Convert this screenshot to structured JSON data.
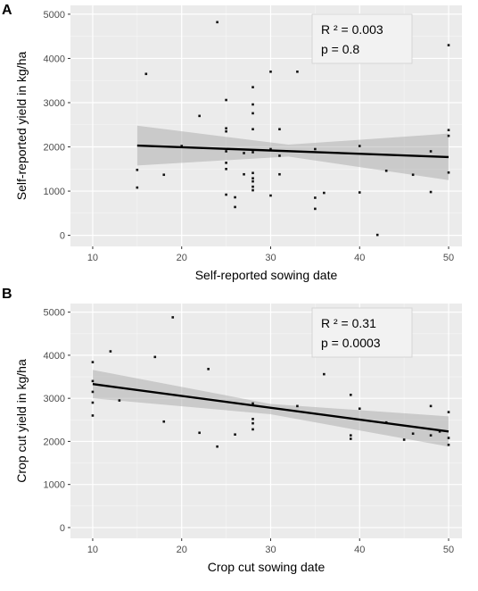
{
  "chart_data": [
    {
      "panel_label": "A",
      "type": "scatter",
      "xlabel": "Self-reported sowing date",
      "ylabel": "Self-reported yield in kg/ha",
      "xlim": [
        7.5,
        51.5
      ],
      "ylim": [
        -250,
        5200
      ],
      "x_ticks": [
        10,
        20,
        30,
        40,
        50
      ],
      "y_ticks": [
        0,
        1000,
        2000,
        3000,
        4000,
        5000
      ],
      "grid": true,
      "annotation": {
        "r2": "R ² = 0.003",
        "p": "p = 0.8"
      },
      "trend": {
        "x": [
          15,
          50
        ],
        "y": [
          2030,
          1770
        ]
      },
      "ci_band": {
        "x": [
          15,
          32,
          50
        ],
        "lower": [
          1580,
          1780,
          1250
        ],
        "upper": [
          2480,
          2050,
          2300
        ]
      },
      "points": [
        [
          15,
          1080
        ],
        [
          15,
          1480
        ],
        [
          16,
          3650
        ],
        [
          18,
          1370
        ],
        [
          20,
          2020
        ],
        [
          22,
          2700
        ],
        [
          24,
          4820
        ],
        [
          25,
          920
        ],
        [
          25,
          1500
        ],
        [
          25,
          1640
        ],
        [
          25,
          1900
        ],
        [
          25,
          2350
        ],
        [
          25,
          2420
        ],
        [
          25,
          3060
        ],
        [
          26,
          640
        ],
        [
          26,
          860
        ],
        [
          27,
          1380
        ],
        [
          27,
          1860
        ],
        [
          28,
          1020
        ],
        [
          28,
          1100
        ],
        [
          28,
          1220
        ],
        [
          28,
          1290
        ],
        [
          28,
          1410
        ],
        [
          28,
          1880
        ],
        [
          28,
          2400
        ],
        [
          28,
          2760
        ],
        [
          28,
          2960
        ],
        [
          28,
          3350
        ],
        [
          30,
          900
        ],
        [
          30,
          1950
        ],
        [
          30,
          3700
        ],
        [
          31,
          1380
        ],
        [
          31,
          1800
        ],
        [
          31,
          2400
        ],
        [
          33,
          3700
        ],
        [
          35,
          600
        ],
        [
          35,
          850
        ],
        [
          35,
          1950
        ],
        [
          36,
          960
        ],
        [
          40,
          970
        ],
        [
          40,
          2020
        ],
        [
          42,
          10
        ],
        [
          43,
          1460
        ],
        [
          46,
          1370
        ],
        [
          48,
          980
        ],
        [
          48,
          1900
        ],
        [
          50,
          1420
        ],
        [
          50,
          2250
        ],
        [
          50,
          2380
        ],
        [
          50,
          4300
        ]
      ]
    },
    {
      "panel_label": "B",
      "type": "scatter",
      "xlabel": "Crop cut sowing date",
      "ylabel": "Crop cut yield in kg/ha",
      "xlim": [
        7.5,
        51.5
      ],
      "ylim": [
        -250,
        5200
      ],
      "x_ticks": [
        10,
        20,
        30,
        40,
        50
      ],
      "y_ticks": [
        0,
        1000,
        2000,
        3000,
        4000,
        5000
      ],
      "grid": true,
      "annotation": {
        "r2": "R ² = 0.31",
        "p": "p = 0.0003"
      },
      "trend": {
        "x": [
          10,
          50
        ],
        "y": [
          3330,
          2230
        ]
      },
      "ci_band": {
        "x": [
          10,
          30,
          50
        ],
        "lower": [
          3000,
          2630,
          1880
        ],
        "upper": [
          3660,
          2870,
          2580
        ]
      },
      "points": [
        [
          10,
          2600
        ],
        [
          10,
          2900
        ],
        [
          10,
          3150
        ],
        [
          10,
          3400
        ],
        [
          10,
          3840
        ],
        [
          12,
          4090
        ],
        [
          13,
          2950
        ],
        [
          17,
          3960
        ],
        [
          18,
          2460
        ],
        [
          19,
          4880
        ],
        [
          22,
          2200
        ],
        [
          23,
          3680
        ],
        [
          24,
          1880
        ],
        [
          26,
          2160
        ],
        [
          28,
          2280
        ],
        [
          28,
          2420
        ],
        [
          28,
          2520
        ],
        [
          28,
          2880
        ],
        [
          33,
          2820
        ],
        [
          36,
          3560
        ],
        [
          39,
          2060
        ],
        [
          39,
          2140
        ],
        [
          39,
          3080
        ],
        [
          40,
          2760
        ],
        [
          43,
          2440
        ],
        [
          45,
          2040
        ],
        [
          46,
          2180
        ],
        [
          48,
          2140
        ],
        [
          48,
          2820
        ],
        [
          49,
          2230
        ],
        [
          50,
          1920
        ],
        [
          50,
          2080
        ],
        [
          50,
          2680
        ]
      ]
    }
  ]
}
